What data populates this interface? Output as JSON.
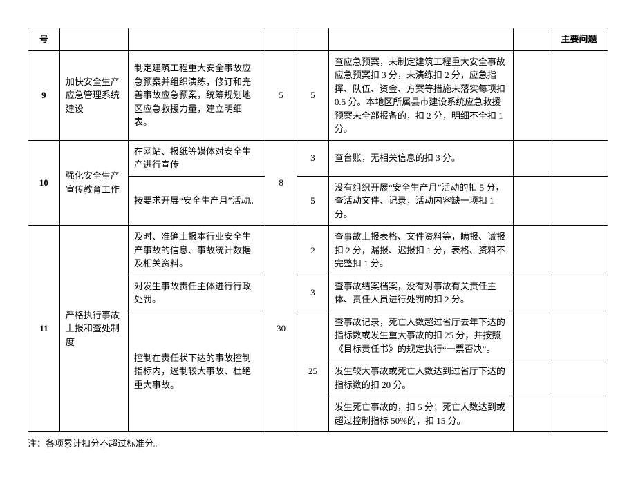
{
  "header": {
    "num": "号",
    "issue": "主要问题"
  },
  "rows": [
    {
      "num": "9",
      "title": "加快安全生产应急管理系统建设",
      "desc": "制定建筑工程重大安全事故应急预案并组织演练，修订和完善事故应急预案，统筹规划地区应急救援力量，建立明细表。",
      "s1": "5",
      "s2": "5",
      "rule_rows": [
        "查应急预案，未制定建筑工程重大安全事故应急预案扣 3 分，未演练扣 2 分，应急指挥、队伍、资金、方案等措施未落实每项扣 0.5 分。本地区所属县市建设系统应急救援预案未全部报备的，扣 2 分，明细不全扣 1 分。"
      ]
    },
    {
      "num": "10",
      "title": "强化安全生产宣传教育工作",
      "s1": "8",
      "subs": [
        {
          "desc": "在网站、报纸等媒体对安全生产进行宣传",
          "s2": "3",
          "rule": "查台账，无相关信息的扣 3 分。"
        },
        {
          "desc": "按要求开展“安全生产月”活动。",
          "s2": "5",
          "rule": "没有组织开展“安全生产月”活动的扣 5 分，查活动文件、记录，活动内容缺一项扣 1 分。"
        }
      ]
    },
    {
      "num": "11",
      "title": "严格执行事故上报和查处制度",
      "s1": "30",
      "subs": [
        {
          "desc": "及时、准确上报本行业安全生产事故的信息、事故统计数据及相关资料。",
          "s2": "2",
          "rules": [
            "查事故上报表格、文件资料等，瞒报、谎报扣 2 分，漏报、迟报扣 1 分，表格、资料不完整扣 1 分。"
          ]
        },
        {
          "desc": "对发生事故责任主体进行行政处罚。",
          "s2": "3",
          "rules": [
            "查事故结案档案，没有对事故有关责任主体、责任人员进行处罚的扣 2 分。"
          ]
        },
        {
          "desc": "控制在责任状下达的事故控制指标内，遏制较大事故、杜绝重大事故。",
          "s2": "25",
          "rules": [
            "查事故记录，死亡人数超过省厅去年下达的指标数或发生重大事故的扣 25 分，并按照《目标责任书》的规定执行“一票否决”。",
            "发生较大事故或死亡人数达到过省厅下达的指标数的扣 20 分。",
            "发生死亡事故的，扣 5 分；死亡人数达到或超过控制指标 50%的，扣 15 分。"
          ]
        }
      ]
    }
  ],
  "note": "注：各项累计扣分不超过标准分。",
  "style": {
    "border_color": "#000000",
    "bg": "#ffffff",
    "font_size": 13,
    "line_height": 1.5
  }
}
